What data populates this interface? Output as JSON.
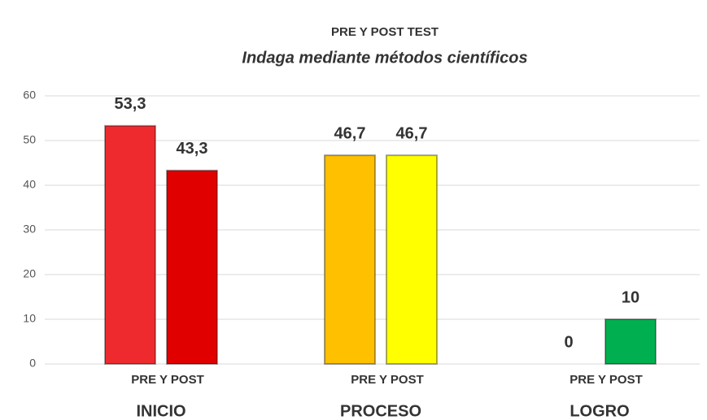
{
  "chart_data": {
    "type": "bar",
    "title": "PRE Y POST TEST",
    "subtitle": "Indaga mediante métodos científicos",
    "categories": [
      "INICIO",
      "PROCESO",
      "LOGRO"
    ],
    "group_labels": [
      "PRE Y POST",
      "PRE Y POST",
      "PRE Y POST"
    ],
    "series": [
      {
        "colors": [
          "#ee2a2e",
          "#ffc000",
          "#00b050"
        ],
        "values": [
          53.3,
          46.7,
          0
        ],
        "value_labels": [
          "53,3",
          "46,7",
          "0"
        ]
      },
      {
        "colors": [
          "#e00000",
          "#ffff00",
          "#00b050"
        ],
        "values": [
          43.3,
          46.7,
          10
        ],
        "value_labels": [
          "43,3",
          "46,7",
          "10"
        ]
      }
    ],
    "ylim": [
      0,
      60
    ],
    "yticks": [
      0,
      10,
      20,
      30,
      40,
      50,
      60
    ],
    "grid": true
  }
}
